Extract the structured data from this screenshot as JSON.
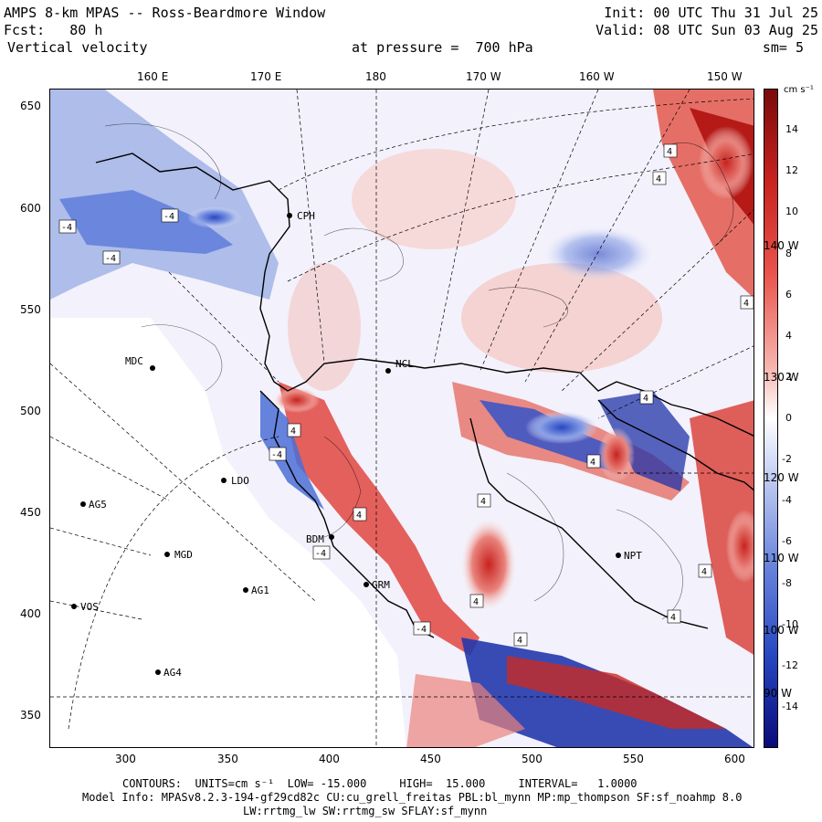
{
  "header": {
    "title_left": "AMPS 8-km MPAS -- Ross-Beardmore Window",
    "init": "Init: 00 UTC Thu 31 Jul 25",
    "fcst": "Fcst:   80 h",
    "valid": "Valid: 08 UTC Sun 03 Aug 25",
    "field": "Vertical velocity",
    "level": "at pressure =  700 hPa",
    "smooth": "sm= 5"
  },
  "colorbar": {
    "units": "cm s⁻¹",
    "ticks": [
      "14",
      "12",
      "10",
      "8",
      "6",
      "4",
      "2",
      "0",
      "-2",
      "-4",
      "-6",
      "-8",
      "-10",
      "-12",
      "-14"
    ],
    "tick_values": [
      14,
      12,
      10,
      8,
      6,
      4,
      2,
      0,
      -2,
      -4,
      -6,
      -8,
      -10,
      -12,
      -14
    ],
    "range": [
      -16,
      16
    ],
    "colors": {
      "neg_strong": "#0b0b8a",
      "neg_mid": "#4b6fd6",
      "neg_weak": "#dfe4fb",
      "zero": "#ffffff",
      "pos_weak": "#fbe0dc",
      "pos_mid": "#e0473f",
      "pos_strong": "#8a0b0b"
    }
  },
  "axes": {
    "top_lon_labels": [
      "160 E",
      "170 E",
      "180",
      "170 W",
      "160 W",
      "150 W"
    ],
    "right_lon_labels": [
      "140 W",
      "130 W",
      "120 W",
      "110 W",
      "100 W",
      "90 W"
    ],
    "y_ticks": [
      "650",
      "600",
      "550",
      "500",
      "450",
      "400",
      "350"
    ],
    "x_ticks": [
      "300",
      "350",
      "400",
      "450",
      "500",
      "550",
      "600"
    ]
  },
  "stations": [
    {
      "id": "CPH"
    },
    {
      "id": "MDC"
    },
    {
      "id": "NCL"
    },
    {
      "id": "LDO"
    },
    {
      "id": "AG5"
    },
    {
      "id": "BDM"
    },
    {
      "id": "MGD"
    },
    {
      "id": "AG1"
    },
    {
      "id": "GRM"
    },
    {
      "id": "VOS"
    },
    {
      "id": "AG4"
    },
    {
      "id": "NPT"
    }
  ],
  "contour_labels": [
    "-4",
    "4"
  ],
  "footer": {
    "contours_line": "CONTOURS:  UNITS=cm s⁻¹  LOW= -15.000     HIGH=  15.000     INTERVAL=   1.0000",
    "model_info": "Model Info: MPASv8.2.3-194-gf29cd82c CU:cu_grell_freitas PBL:bl_mynn MP:mp_thompson SF:sf_noahmp 8.0",
    "model_info2": "LW:rrtmg_lw SW:rrtmg_sw SFLAY:sf_mynn"
  }
}
